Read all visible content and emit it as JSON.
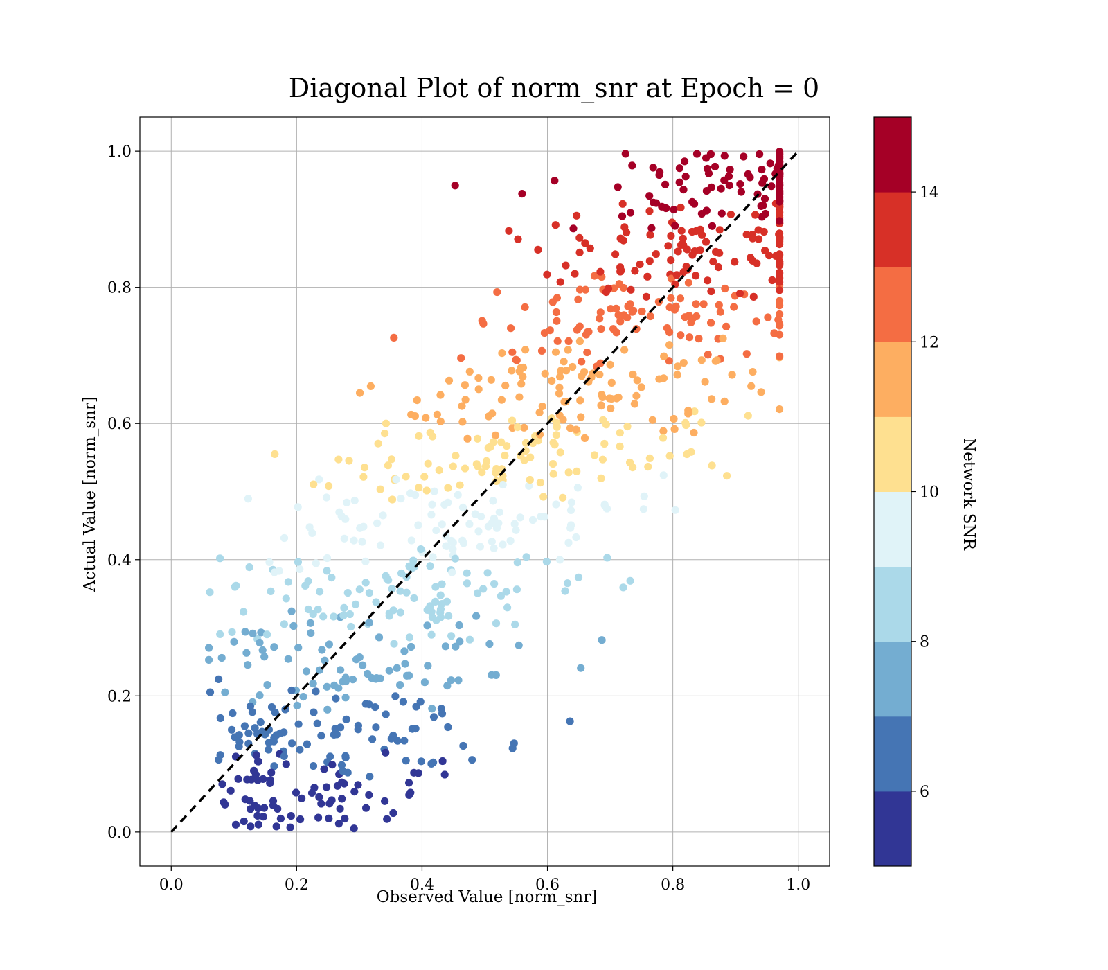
{
  "chart_data": {
    "type": "scatter",
    "title": "Diagonal Plot of norm_snr at Epoch = 0",
    "xlabel": "Observed Value [norm_snr]",
    "ylabel": "Actual Value [norm_snr]",
    "xlim": [
      -0.05,
      1.05
    ],
    "ylim": [
      -0.05,
      1.05
    ],
    "x_ticks": [
      "0.0",
      "0.2",
      "0.4",
      "0.6",
      "0.8",
      "1.0"
    ],
    "y_ticks": [
      "0.0",
      "0.2",
      "0.4",
      "0.6",
      "0.8",
      "1.0"
    ],
    "grid": true,
    "reference_line": {
      "style": "dashed",
      "color": "#000000",
      "from": [
        0,
        0
      ],
      "to": [
        1,
        1
      ]
    },
    "colorbar": {
      "label": "Network SNR",
      "range": [
        5,
        15
      ],
      "ticks": [
        "6",
        "8",
        "10",
        "12",
        "14"
      ],
      "colors": [
        "#313695",
        "#4575b4",
        "#74add1",
        "#abd9e9",
        "#e0f3f8",
        "#fee090",
        "#fdae61",
        "#f46d43",
        "#d73027",
        "#a50026"
      ]
    },
    "point_distribution": "about 1000 points; color (Network SNR) follows the actual value: blue below 0.2, light blue 0.2-0.4, pale 0.4-0.6, orange 0.6-0.8, red above 0.8; points spread around the y = x diagonal with a wider spread on the low-y/high-x side"
  }
}
